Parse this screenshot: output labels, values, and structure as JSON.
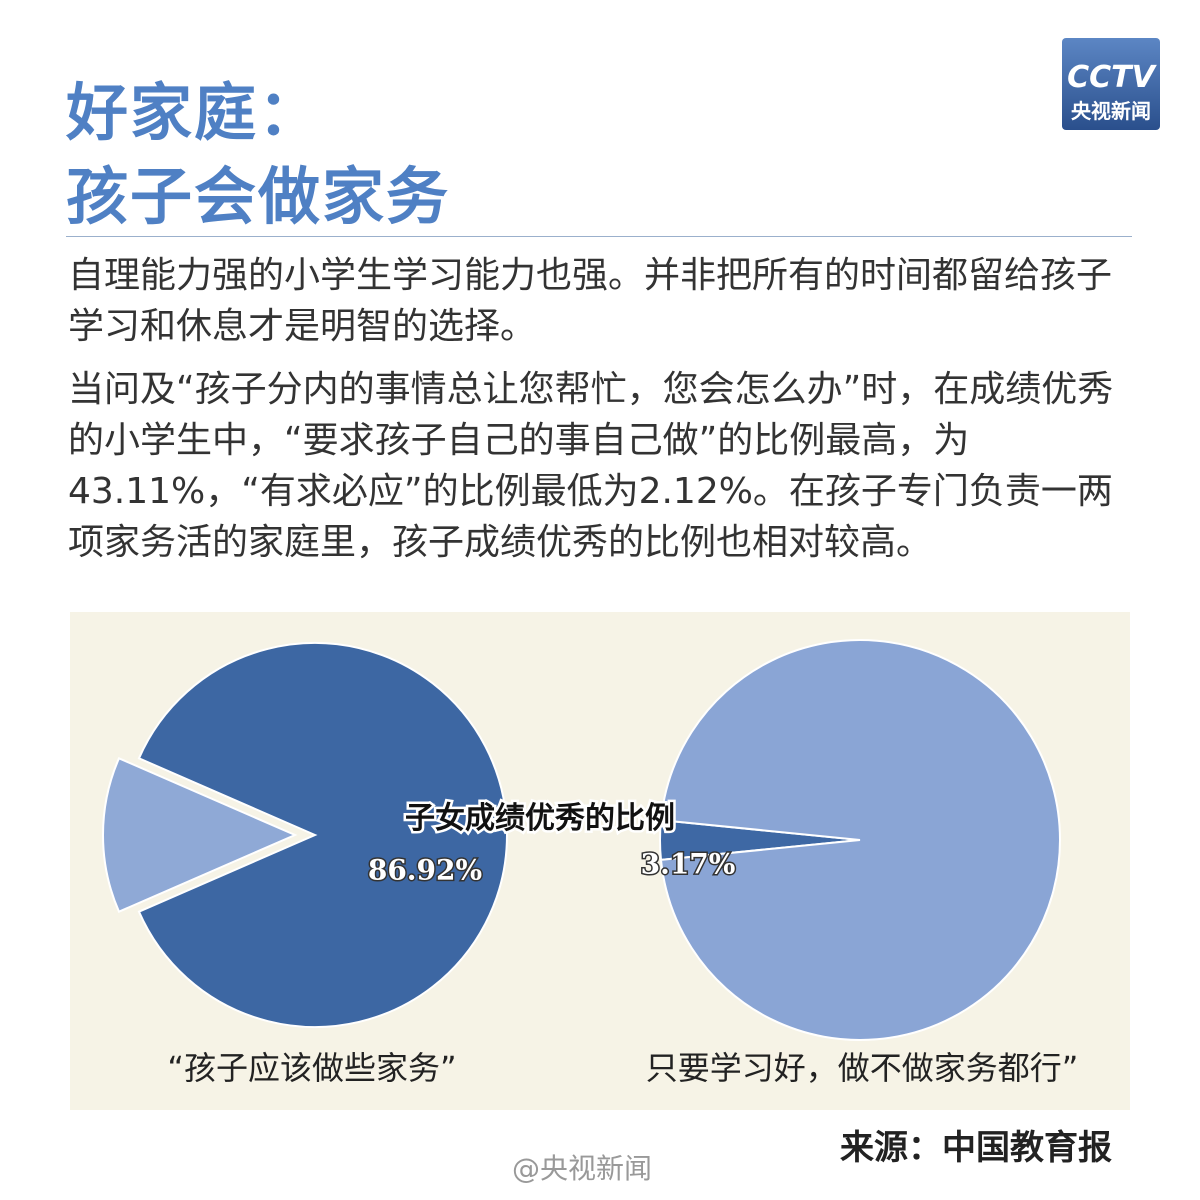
{
  "header": {
    "title_lines": [
      "好家庭：",
      "孩子会做家务"
    ],
    "logo": {
      "top": "CCTV",
      "bottom": "央视新闻"
    }
  },
  "paragraphs": [
    "自理能力强的小学生学习能力也强。并非把所有的时间都留给孩子学习和休息才是明智的选择。",
    "当问及“孩子分内的事情总让您帮忙，您会怎么办”时，在成绩优秀的小学生中，“要求孩子自己的事自己做”的比例最高，为43.11%，“有求必应”的比例最低为2.12%。在孩子专门负责一两项家务活的家庭里，孩子成绩优秀的比例也相对较高。"
  ],
  "chart_title": "子女成绩优秀的比例",
  "chart_data": [
    {
      "type": "pie",
      "caption": "“孩子应该做些家务”",
      "values": [
        86.92,
        13.08
      ],
      "value_labels": [
        "86.92%",
        null
      ],
      "colors": [
        "#3d67a3",
        "#8fa9d6"
      ]
    },
    {
      "type": "pie",
      "caption": "只要学习好，做不做家务都行”",
      "values": [
        3.17,
        96.83
      ],
      "value_labels": [
        "3.17%",
        null
      ],
      "colors": [
        "#3e68a4",
        "#8aa5d5"
      ]
    }
  ],
  "source": "来源：中国教育报",
  "watermark": "@央视新闻"
}
